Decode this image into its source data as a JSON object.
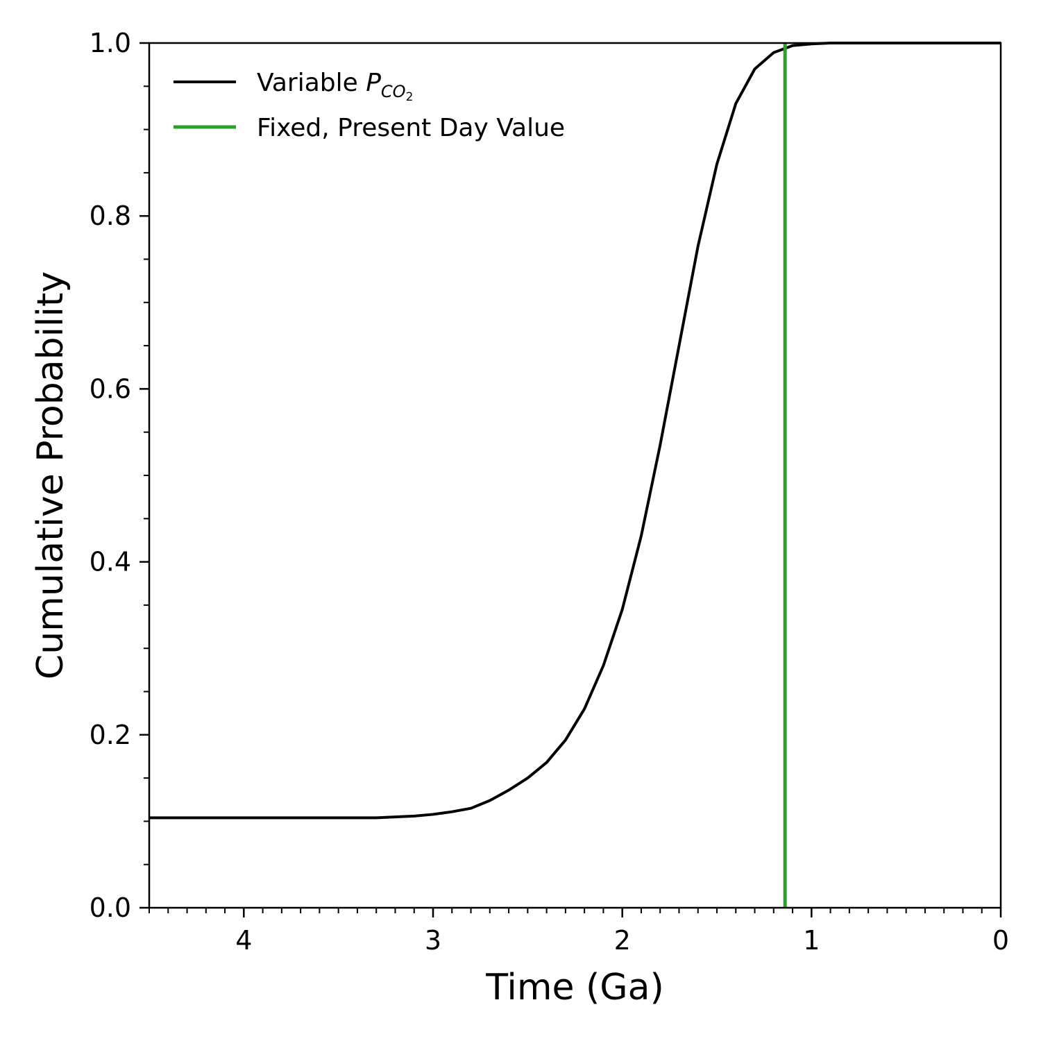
{
  "chart_data": {
    "type": "line",
    "title": "",
    "xlabel": "Time (Ga)",
    "ylabel": "Cumulative Probability",
    "xlim": [
      4.5,
      0
    ],
    "ylim": [
      0,
      1
    ],
    "x_reversed": true,
    "xticks": [
      4,
      3,
      2,
      1,
      0
    ],
    "xtick_labels": [
      "4",
      "3",
      "2",
      "1",
      "0"
    ],
    "x_minor_step": 0.1,
    "yticks": [
      0,
      0.2,
      0.4,
      0.6,
      0.8,
      1.0
    ],
    "ytick_labels": [
      "0.0",
      "0.2",
      "0.4",
      "0.6",
      "0.8",
      "1.0"
    ],
    "y_minor_step": 0.05,
    "grid": false,
    "legend_position": "top-left",
    "series": [
      {
        "name": "Variable P_CO2",
        "legend": {
          "prefix": "Variable ",
          "symbol": "P",
          "subscript": "CO",
          "subsubscript": "2"
        },
        "color": "#000000",
        "x": [
          4.5,
          4.0,
          3.5,
          3.3,
          3.2,
          3.1,
          3.0,
          2.9,
          2.8,
          2.7,
          2.6,
          2.5,
          2.4,
          2.3,
          2.2,
          2.1,
          2.0,
          1.9,
          1.8,
          1.7,
          1.6,
          1.5,
          1.4,
          1.3,
          1.2,
          1.1,
          1.0,
          0.9,
          0.8,
          0.5,
          0.0
        ],
        "y": [
          0.104,
          0.104,
          0.104,
          0.104,
          0.105,
          0.106,
          0.108,
          0.111,
          0.115,
          0.124,
          0.136,
          0.15,
          0.168,
          0.194,
          0.23,
          0.28,
          0.345,
          0.43,
          0.535,
          0.65,
          0.765,
          0.86,
          0.93,
          0.97,
          0.989,
          0.997,
          0.999,
          1.0,
          1.0,
          1.0,
          1.0
        ]
      },
      {
        "name": "Fixed, Present Day Value",
        "color": "#2ca02c",
        "type": "vline",
        "x_value": 1.14
      }
    ]
  }
}
